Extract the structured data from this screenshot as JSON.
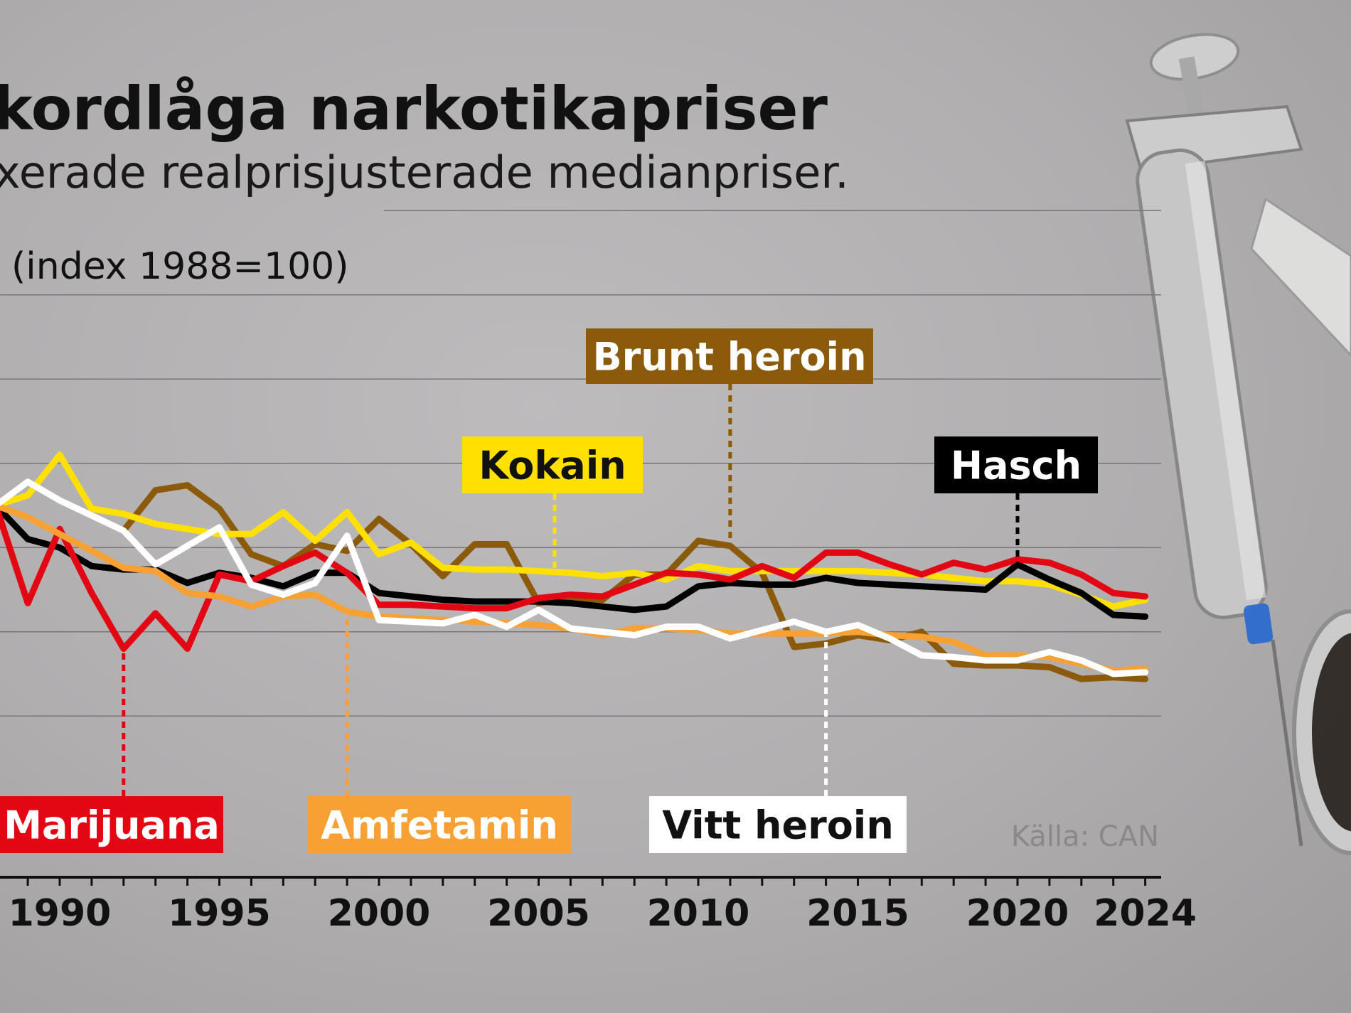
{
  "title": "kordlåga narkotikapriser",
  "subtitle": "xerade realprisjusterade medianpriser.",
  "unit_label": "(index 1988=100)",
  "source": "Källa: CAN",
  "colors": {
    "Marijuana": "#e30613",
    "Amfetamin": "#f7a134",
    "Vitt heroin": "#ffffff",
    "Hasch": "#000000",
    "Kokain": "#ffe000",
    "Brunt heroin": "#8b5a0b",
    "grid": "#777577",
    "axis": "#111111"
  },
  "chart_data": {
    "type": "line",
    "ylim": [
      0,
      200
    ],
    "xlim": [
      1987.2,
      2024
    ],
    "grid": true,
    "x_ticks": [
      1990,
      1995,
      2000,
      2005,
      2010,
      2015,
      2020,
      2024
    ],
    "series": [
      {
        "name": "Hasch",
        "label_year": 2020,
        "x": [
          1988,
          1989,
          1990,
          1991,
          1992,
          1993,
          1994,
          1995,
          1996,
          1997,
          1998,
          1999,
          2000,
          2001,
          2002,
          2003,
          2004,
          2005,
          2006,
          2007,
          2008,
          2009,
          2010,
          2011,
          2012,
          2013,
          2014,
          2015,
          2016,
          2017,
          2018,
          2019,
          2020,
          2021,
          2022,
          2023,
          2024
        ],
        "values": [
          100,
          80,
          75,
          64,
          62,
          62,
          54,
          60,
          57,
          52,
          60,
          60,
          48,
          46,
          44,
          43,
          43,
          43,
          42,
          40,
          38,
          40,
          52,
          54,
          53,
          53,
          57,
          54,
          53,
          52,
          51,
          50,
          65,
          56,
          48,
          35,
          34
        ]
      },
      {
        "name": "Kokain",
        "label_year": 2005.5,
        "x": [
          1988,
          1989,
          1990,
          1991,
          1992,
          1993,
          1994,
          1995,
          1996,
          1997,
          1998,
          1999,
          2000,
          2001,
          2002,
          2003,
          2004,
          2005,
          2006,
          2007,
          2008,
          2009,
          2010,
          2011,
          2012,
          2013,
          2014,
          2015,
          2016,
          2017,
          2018,
          2019,
          2020,
          2021,
          2022,
          2023,
          2024
        ],
        "values": [
          100,
          106,
          130,
          98,
          95,
          89,
          86,
          83,
          83,
          96,
          79,
          96,
          71,
          78,
          63,
          62,
          62,
          61,
          60,
          58,
          60,
          56,
          64,
          61,
          61,
          61,
          61,
          61,
          60,
          59,
          57,
          55,
          55,
          53,
          47,
          40,
          44
        ]
      },
      {
        "name": "Brunt heroin",
        "label_year": 2011,
        "x": [
          1992,
          1993,
          1994,
          1995,
          1996,
          1997,
          1998,
          1999,
          2000,
          2001,
          2002,
          2003,
          2004,
          2005,
          2006,
          2007,
          2008,
          2009,
          2010,
          2011,
          2012,
          2013,
          2014,
          2015,
          2016,
          2017,
          2018,
          2019,
          2020,
          2021,
          2022,
          2023,
          2024
        ],
        "values": [
          85,
          109,
          112,
          98,
          71,
          64,
          77,
          73,
          92,
          77,
          58,
          77,
          77,
          42,
          45,
          44,
          59,
          59,
          79,
          76,
          60,
          16,
          18,
          23,
          20,
          25,
          6,
          5,
          5,
          4,
          -3,
          -2,
          -3
        ]
      },
      {
        "name": "Marijuana",
        "label_year": 1992,
        "x": [
          1988,
          1989,
          1990,
          1991,
          1992,
          1993,
          1994,
          1995,
          1996,
          1997,
          1998,
          1999,
          2000,
          2001,
          2002,
          2003,
          2004,
          2005,
          2006,
          2007,
          2008,
          2009,
          2010,
          2011,
          2012,
          2013,
          2014,
          2015,
          2016,
          2017,
          2018,
          2019,
          2020,
          2021,
          2022,
          2023,
          2024
        ],
        "values": [
          100,
          42,
          86,
          48,
          15,
          36,
          15,
          59,
          55,
          64,
          72,
          60,
          41,
          41,
          40,
          39,
          39,
          45,
          47,
          46,
          53,
          60,
          59,
          56,
          64,
          57,
          72,
          72,
          65,
          59,
          66,
          62,
          68,
          66,
          59,
          48,
          46
        ]
      },
      {
        "name": "Amfetamin",
        "label_year": 1999,
        "x": [
          1988,
          1989,
          1990,
          1991,
          1992,
          1993,
          1994,
          1995,
          1996,
          1997,
          1998,
          1999,
          2000,
          2001,
          2002,
          2003,
          2004,
          2005,
          2006,
          2007,
          2008,
          2009,
          2010,
          2011,
          2012,
          2013,
          2014,
          2015,
          2016,
          2017,
          2018,
          2019,
          2020,
          2021,
          2022,
          2023,
          2024
        ],
        "values": [
          100,
          93,
          83,
          73,
          63,
          61,
          48,
          46,
          40,
          46,
          47,
          37,
          34,
          33,
          32,
          31,
          30,
          29,
          27,
          23,
          27,
          27,
          26,
          24,
          24,
          24,
          24,
          25,
          23,
          22,
          19,
          11,
          11,
          10,
          6,
          2,
          3
        ]
      },
      {
        "name": "Vitt heroin",
        "label_year": 2014,
        "x": [
          1988,
          1989,
          1990,
          1991,
          1992,
          1993,
          1994,
          1995,
          1996,
          1997,
          1998,
          1999,
          2000,
          2001,
          2002,
          2003,
          2004,
          2005,
          2006,
          2007,
          2008,
          2009,
          2010,
          2011,
          2012,
          2013,
          2014,
          2015,
          2016,
          2017,
          2018,
          2019,
          2020,
          2021,
          2022,
          2023,
          2024
        ],
        "values": [
          100,
          114,
          103,
          94,
          85,
          65,
          76,
          87,
          53,
          47,
          54,
          82,
          32,
          31,
          30,
          35,
          28,
          38,
          27,
          25,
          23,
          28,
          28,
          21,
          26,
          31,
          25,
          29,
          21,
          11,
          10,
          8,
          8,
          13,
          8,
          0,
          1
        ]
      }
    ],
    "labels": [
      {
        "name": "Brunt heroin",
        "text": "Brunt heroin",
        "text_color": "#ffffff",
        "bg": "#8b5a0b"
      },
      {
        "name": "Kokain",
        "text": "Kokain",
        "text_color": "#111111",
        "bg": "#ffe000"
      },
      {
        "name": "Hasch",
        "text": "Hasch",
        "text_color": "#ffffff",
        "bg": "#000000"
      },
      {
        "name": "Marijuana",
        "text": "Marijuana",
        "text_color": "#ffffff",
        "bg": "#e30613"
      },
      {
        "name": "Amfetamin",
        "text": "Amfetamin",
        "text_color": "#ffffff",
        "bg": "#f7a134"
      },
      {
        "name": "Vitt heroin",
        "text": "Vitt heroin",
        "text_color": "#111111",
        "bg": "#ffffff"
      }
    ]
  }
}
